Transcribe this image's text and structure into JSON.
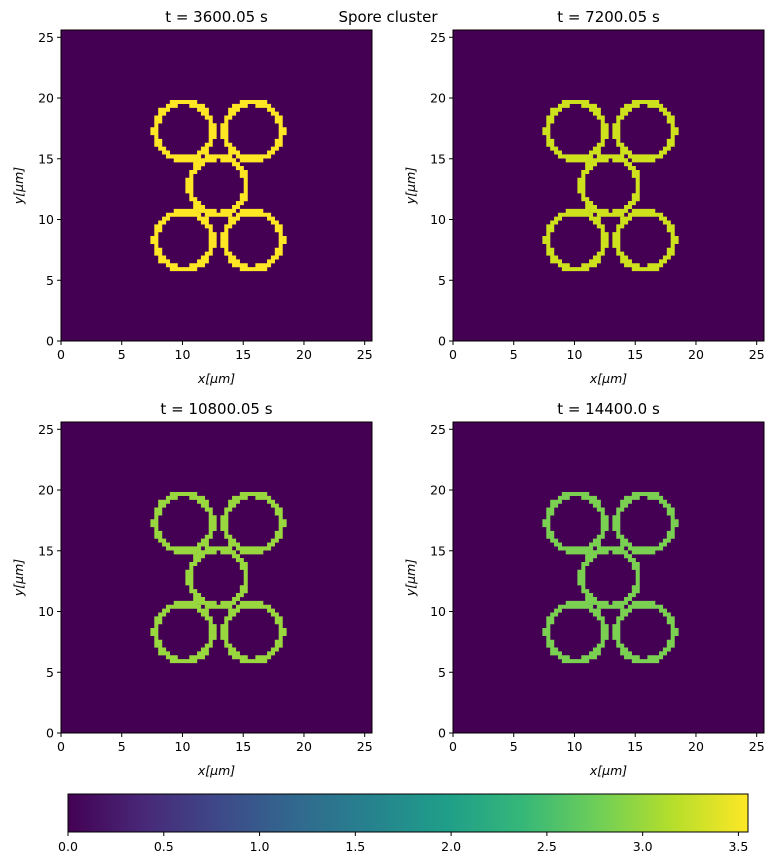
{
  "figure": {
    "suptitle": "Spore cluster"
  },
  "chart_data": [
    {
      "type": "heatmap",
      "title": "t = 3600.05 s",
      "xlabel": "x[μm]",
      "ylabel": "y[μm]",
      "xlim": [
        0,
        25.6
      ],
      "ylim": [
        0,
        25.6
      ],
      "xticks": [
        0,
        5,
        10,
        15,
        20,
        25
      ],
      "yticks": [
        0,
        5,
        10,
        15,
        20,
        25
      ],
      "background_value": 0.0,
      "ring_value": 3.55,
      "ring_color": "#fde725",
      "rings": [
        {
          "cx": 10.1,
          "cy": 17.3,
          "r": 2.35
        },
        {
          "cx": 15.8,
          "cy": 17.3,
          "r": 2.35
        },
        {
          "cx": 12.9,
          "cy": 12.8,
          "r": 2.35
        },
        {
          "cx": 10.1,
          "cy": 8.3,
          "r": 2.35
        },
        {
          "cx": 15.8,
          "cy": 8.3,
          "r": 2.35
        }
      ]
    },
    {
      "type": "heatmap",
      "title": "t = 7200.05 s",
      "xlabel": "x[μm]",
      "ylabel": "y[μm]",
      "xlim": [
        0,
        25.6
      ],
      "ylim": [
        0,
        25.6
      ],
      "xticks": [
        0,
        5,
        10,
        15,
        20,
        25
      ],
      "yticks": [
        0,
        5,
        10,
        15,
        20,
        25
      ],
      "background_value": 0.0,
      "ring_value": 3.35,
      "ring_color": "#cde11d",
      "rings": [
        {
          "cx": 10.1,
          "cy": 17.3,
          "r": 2.35
        },
        {
          "cx": 15.8,
          "cy": 17.3,
          "r": 2.35
        },
        {
          "cx": 12.9,
          "cy": 12.8,
          "r": 2.35
        },
        {
          "cx": 10.1,
          "cy": 8.3,
          "r": 2.35
        },
        {
          "cx": 15.8,
          "cy": 8.3,
          "r": 2.35
        }
      ]
    },
    {
      "type": "heatmap",
      "title": "t = 10800.05 s",
      "xlabel": "x[μm]",
      "ylabel": "y[μm]",
      "xlim": [
        0,
        25.6
      ],
      "ylim": [
        0,
        25.6
      ],
      "xticks": [
        0,
        5,
        10,
        15,
        20,
        25
      ],
      "yticks": [
        0,
        5,
        10,
        15,
        20,
        25
      ],
      "background_value": 0.0,
      "ring_value": 3.1,
      "ring_color": "#98d83e",
      "rings": [
        {
          "cx": 10.1,
          "cy": 17.3,
          "r": 2.35
        },
        {
          "cx": 15.8,
          "cy": 17.3,
          "r": 2.35
        },
        {
          "cx": 12.9,
          "cy": 12.8,
          "r": 2.35
        },
        {
          "cx": 10.1,
          "cy": 8.3,
          "r": 2.35
        },
        {
          "cx": 15.8,
          "cy": 8.3,
          "r": 2.35
        }
      ]
    },
    {
      "type": "heatmap",
      "title": "t = 14400.0 s",
      "xlabel": "x[μm]",
      "ylabel": "y[μm]",
      "xlim": [
        0,
        25.6
      ],
      "ylim": [
        0,
        25.6
      ],
      "xticks": [
        0,
        5,
        10,
        15,
        20,
        25
      ],
      "yticks": [
        0,
        5,
        10,
        15,
        20,
        25
      ],
      "background_value": 0.0,
      "ring_value": 2.95,
      "ring_color": "#7ad151",
      "rings": [
        {
          "cx": 10.1,
          "cy": 17.3,
          "r": 2.35
        },
        {
          "cx": 15.8,
          "cy": 17.3,
          "r": 2.35
        },
        {
          "cx": 12.9,
          "cy": 12.8,
          "r": 2.35
        },
        {
          "cx": 10.1,
          "cy": 8.3,
          "r": 2.35
        },
        {
          "cx": 15.8,
          "cy": 8.3,
          "r": 2.35
        }
      ]
    }
  ],
  "colorbar": {
    "colormap": "viridis",
    "vmin": 0.0,
    "vmax": 3.55,
    "ticks": [
      0.0,
      0.5,
      1.0,
      1.5,
      2.0,
      2.5,
      3.0,
      3.5
    ],
    "tick_labels": [
      "0.0",
      "0.5",
      "1.0",
      "1.5",
      "2.0",
      "2.5",
      "3.0",
      "3.5"
    ],
    "stops": [
      "#440154",
      "#482878",
      "#3e4989",
      "#31688e",
      "#26828e",
      "#1f9e89",
      "#35b779",
      "#6ece58",
      "#b5de2b",
      "#fde725"
    ]
  }
}
